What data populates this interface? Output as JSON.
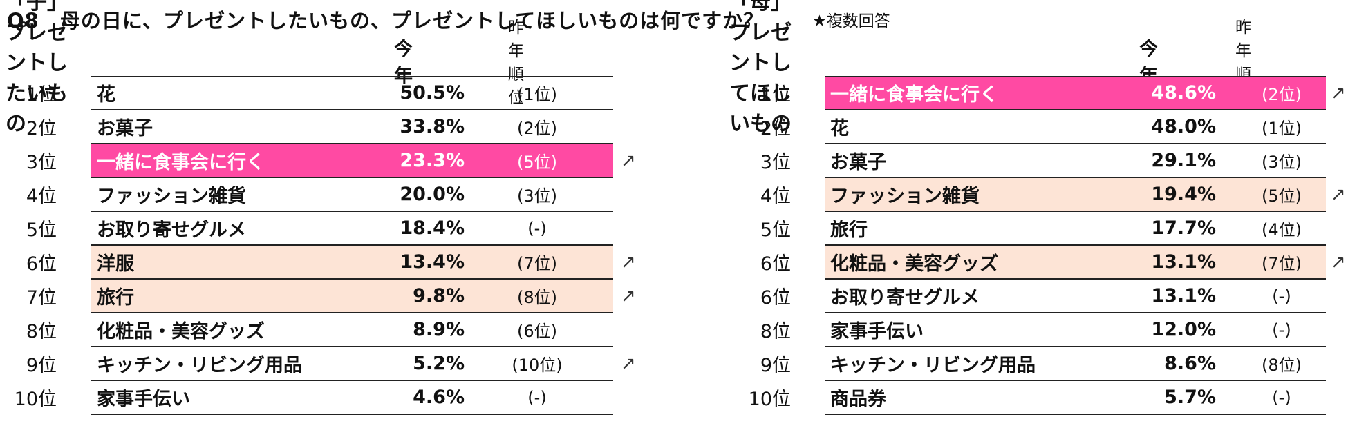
{
  "question": {
    "title": "Q8　母の日に、プレゼントしたいもの、プレゼントしてほしいものは何ですか？",
    "note": "★複数回答"
  },
  "headers": {
    "this_year": "今年",
    "last_year_rank": "昨年順位"
  },
  "colors": {
    "highlight_top": "#ff4aa3",
    "highlight_up": "#fde4d6",
    "rule": "#222222"
  },
  "arrow_up_symbol": "↗",
  "left": {
    "title": "「子」プレゼントしたいもの",
    "rows": [
      {
        "rank": "1位",
        "item": "花",
        "value": "50.5%",
        "prev": "(1位)",
        "highlight": "none",
        "arrow": false
      },
      {
        "rank": "2位",
        "item": "お菓子",
        "value": "33.8%",
        "prev": "(2位)",
        "highlight": "none",
        "arrow": false
      },
      {
        "rank": "3位",
        "item": "一緒に食事会に行く",
        "value": "23.3%",
        "prev": "(5位)",
        "highlight": "pink",
        "arrow": true
      },
      {
        "rank": "4位",
        "item": "ファッション雑貨",
        "value": "20.0%",
        "prev": "(3位)",
        "highlight": "none",
        "arrow": false
      },
      {
        "rank": "5位",
        "item": "お取り寄せグルメ",
        "value": "18.4%",
        "prev": "(-)",
        "highlight": "none",
        "arrow": false
      },
      {
        "rank": "6位",
        "item": "洋服",
        "value": "13.4%",
        "prev": "(7位)",
        "highlight": "peach",
        "arrow": true
      },
      {
        "rank": "7位",
        "item": "旅行",
        "value": "9.8%",
        "prev": "(8位)",
        "highlight": "peach",
        "arrow": true
      },
      {
        "rank": "8位",
        "item": "化粧品・美容グッズ",
        "value": "8.9%",
        "prev": "(6位)",
        "highlight": "none",
        "arrow": false
      },
      {
        "rank": "9位",
        "item": "キッチン・リビング用品",
        "value": "5.2%",
        "prev": "(10位)",
        "highlight": "none",
        "arrow": true
      },
      {
        "rank": "10位",
        "item": "家事手伝い",
        "value": "4.6%",
        "prev": "(-)",
        "highlight": "none",
        "arrow": false
      }
    ]
  },
  "right": {
    "title": "「母」プレゼントしてほしいもの",
    "rows": [
      {
        "rank": "1位",
        "item": "一緒に食事会に行く",
        "value": "48.6%",
        "prev": "(2位)",
        "highlight": "pink",
        "arrow": true
      },
      {
        "rank": "2位",
        "item": "花",
        "value": "48.0%",
        "prev": "(1位)",
        "highlight": "none",
        "arrow": false
      },
      {
        "rank": "3位",
        "item": "お菓子",
        "value": "29.1%",
        "prev": "(3位)",
        "highlight": "none",
        "arrow": false
      },
      {
        "rank": "4位",
        "item": "ファッション雑貨",
        "value": "19.4%",
        "prev": "(5位)",
        "highlight": "peach",
        "arrow": true
      },
      {
        "rank": "5位",
        "item": "旅行",
        "value": "17.7%",
        "prev": "(4位)",
        "highlight": "none",
        "arrow": false
      },
      {
        "rank": "6位",
        "item": "化粧品・美容グッズ",
        "value": "13.1%",
        "prev": "(7位)",
        "highlight": "peach",
        "arrow": true
      },
      {
        "rank": "6位",
        "item": "お取り寄せグルメ",
        "value": "13.1%",
        "prev": "(-)",
        "highlight": "none",
        "arrow": false
      },
      {
        "rank": "8位",
        "item": "家事手伝い",
        "value": "12.0%",
        "prev": "(-)",
        "highlight": "none",
        "arrow": false
      },
      {
        "rank": "9位",
        "item": "キッチン・リビング用品",
        "value": "8.6%",
        "prev": "(8位)",
        "highlight": "none",
        "arrow": false
      },
      {
        "rank": "10位",
        "item": "商品券",
        "value": "5.7%",
        "prev": "(-)",
        "highlight": "none",
        "arrow": false
      }
    ]
  }
}
